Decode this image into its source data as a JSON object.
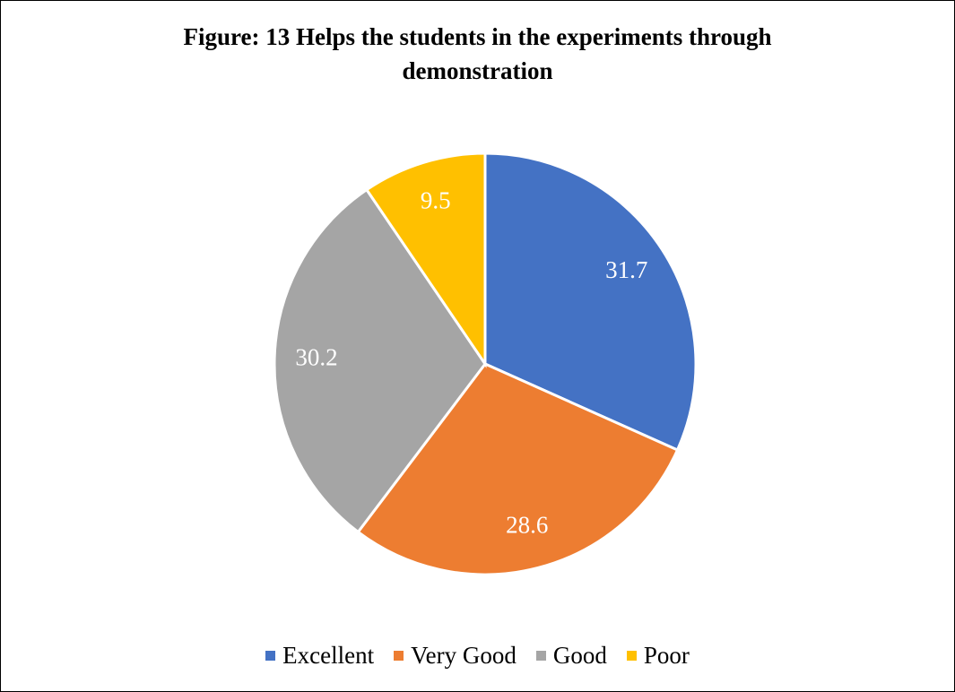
{
  "chart_data": {
    "type": "pie",
    "title": "Figure: 13 Helps the students in the experiments through demonstration",
    "categories": [
      "Excellent",
      "Very Good",
      "Good",
      "Poor"
    ],
    "values": [
      31.7,
      28.6,
      30.2,
      9.5
    ],
    "colors": [
      "#4472c4",
      "#ed7d31",
      "#a5a5a5",
      "#ffc000"
    ],
    "legend": "bottom"
  }
}
